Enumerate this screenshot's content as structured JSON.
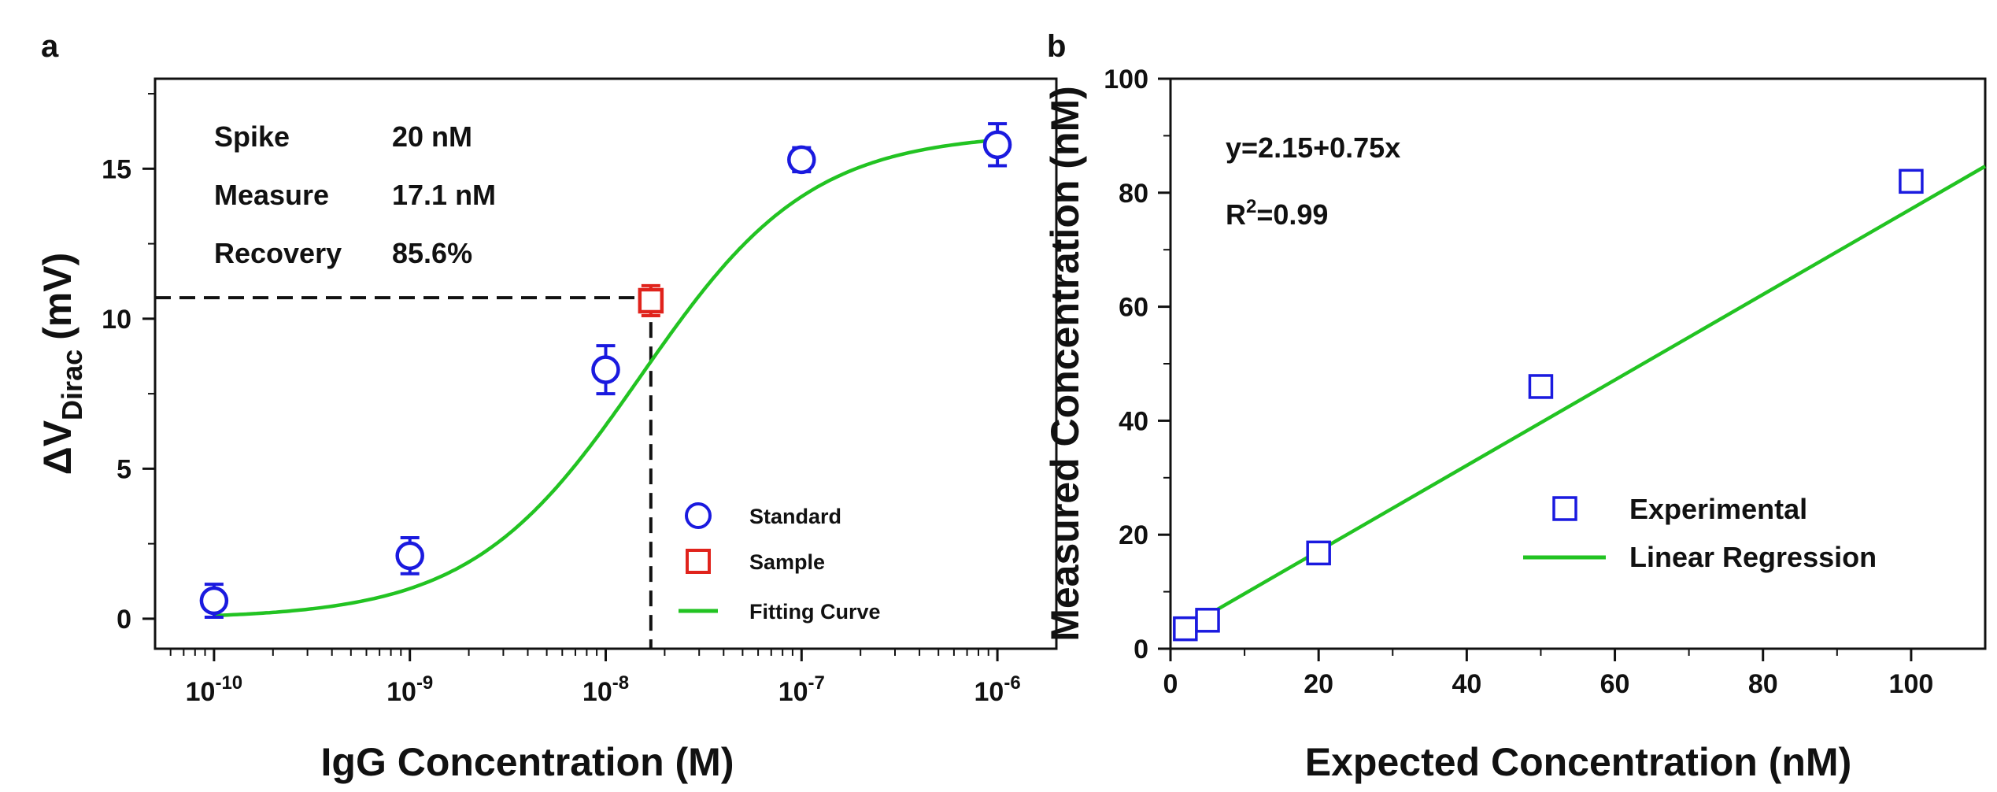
{
  "chart_data": [
    {
      "panel": "a",
      "type": "scatter",
      "xscale": "log",
      "xlabel": "IgG Concentration (M)",
      "ylabel_main": "ΔV",
      "ylabel_sub": "Dirac",
      "ylabel_unit": "(mV)",
      "xlim": [
        5e-11,
        2e-06
      ],
      "ylim": [
        -1,
        18
      ],
      "xticks": [
        {
          "value": 1e-10,
          "base": "10",
          "exp": "-10"
        },
        {
          "value": 1e-09,
          "base": "10",
          "exp": "-9"
        },
        {
          "value": 1e-08,
          "base": "10",
          "exp": "-8"
        },
        {
          "value": 1e-07,
          "base": "10",
          "exp": "-7"
        },
        {
          "value": 1e-06,
          "base": "10",
          "exp": "-6"
        }
      ],
      "yticks": [
        0,
        5,
        10,
        15
      ],
      "series": [
        {
          "name": "Standard",
          "marker": "circle",
          "color": "#1a1adf",
          "x": [
            1e-10,
            1e-09,
            1e-08,
            1e-07,
            1e-06
          ],
          "y": [
            0.6,
            2.1,
            8.3,
            15.3,
            15.8
          ],
          "err": [
            0.55,
            0.6,
            0.8,
            0.4,
            0.7
          ]
        },
        {
          "name": "Sample",
          "marker": "square",
          "color": "#e0231c",
          "x": [
            1.7e-08
          ],
          "y": [
            10.6
          ],
          "err": [
            0.5
          ]
        },
        {
          "name": "Fitting Curve",
          "type": "line",
          "color": "#22c322",
          "model": {
            "bottom": 0,
            "top": 16.2,
            "logEC50": -7.82,
            "hill": 1.0
          }
        }
      ],
      "guide_point": {
        "x": 1.7e-08,
        "y": 10.7
      },
      "annotation": [
        {
          "label": "Spike",
          "value": "20 nM"
        },
        {
          "label": "Measure",
          "value": "17.1 nM"
        },
        {
          "label": "Recovery",
          "value": "85.6%"
        }
      ]
    },
    {
      "panel": "b",
      "type": "scatter",
      "xlabel": "Expected Concentration (nM)",
      "ylabel": "Measured Concentration (nM)",
      "xlim": [
        0,
        110
      ],
      "ylim": [
        0,
        100
      ],
      "xticks": [
        0,
        20,
        40,
        60,
        80,
        100
      ],
      "yticks": [
        0,
        20,
        40,
        60,
        80,
        100
      ],
      "series": [
        {
          "name": "Experimental",
          "marker": "square",
          "color": "#1a1adf",
          "x": [
            2,
            5,
            20,
            50,
            100
          ],
          "y": [
            3.5,
            5,
            16.8,
            46,
            82
          ]
        },
        {
          "name": "Linear Regression",
          "type": "line",
          "color": "#22c322",
          "intercept": 2.15,
          "slope": 0.75,
          "x_range": [
            5,
            110
          ]
        }
      ],
      "equation": {
        "main": "y=2.15+0.75x",
        "r_prefix": "R",
        "r_sup": "2",
        "r_suffix": "=0.99"
      }
    }
  ]
}
